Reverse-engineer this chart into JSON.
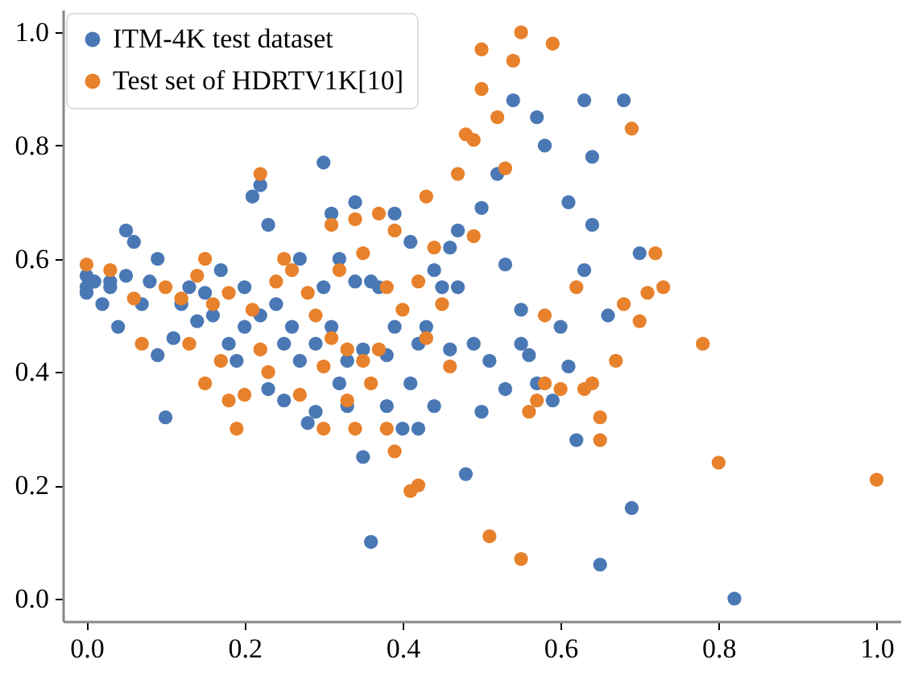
{
  "chart_data": {
    "type": "scatter",
    "xlim": [
      -0.03,
      1.03
    ],
    "ylim": [
      -0.04,
      1.04
    ],
    "xticks": [
      {
        "value": 0,
        "label": "0.0"
      },
      0.2,
      0.4,
      0.6,
      0.8,
      {
        "value": 1,
        "label": "1.0"
      }
    ],
    "yticks": [
      {
        "value": 0,
        "label": "0.0"
      },
      0.2,
      0.4,
      0.6,
      0.8,
      {
        "value": 1,
        "label": "1.0"
      }
    ],
    "grid": false,
    "legend": "top left",
    "marker": "circle",
    "series": [
      {
        "name": "ITM-4K test dataset",
        "color": "#4a78b5",
        "x": [
          0.0,
          0.0,
          0.0,
          0.01,
          0.02,
          0.03,
          0.03,
          0.04,
          0.05,
          0.05,
          0.06,
          0.07,
          0.08,
          0.09,
          0.09,
          0.1,
          0.11,
          0.12,
          0.13,
          0.14,
          0.15,
          0.16,
          0.17,
          0.18,
          0.19,
          0.2,
          0.2,
          0.21,
          0.22,
          0.22,
          0.23,
          0.23,
          0.24,
          0.25,
          0.25,
          0.26,
          0.27,
          0.27,
          0.28,
          0.29,
          0.29,
          0.3,
          0.3,
          0.31,
          0.31,
          0.32,
          0.32,
          0.33,
          0.33,
          0.34,
          0.34,
          0.35,
          0.35,
          0.36,
          0.36,
          0.37,
          0.38,
          0.38,
          0.39,
          0.39,
          0.4,
          0.41,
          0.41,
          0.42,
          0.42,
          0.43,
          0.44,
          0.44,
          0.45,
          0.46,
          0.46,
          0.47,
          0.47,
          0.48,
          0.49,
          0.5,
          0.5,
          0.51,
          0.52,
          0.53,
          0.53,
          0.54,
          0.55,
          0.55,
          0.56,
          0.57,
          0.57,
          0.58,
          0.59,
          0.6,
          0.61,
          0.61,
          0.62,
          0.63,
          0.63,
          0.64,
          0.64,
          0.65,
          0.66,
          0.68,
          0.69,
          0.7,
          0.82
        ],
        "values": [
          0.55,
          0.57,
          0.54,
          0.56,
          0.52,
          0.56,
          0.55,
          0.48,
          0.57,
          0.65,
          0.63,
          0.52,
          0.56,
          0.6,
          0.43,
          0.32,
          0.46,
          0.52,
          0.55,
          0.49,
          0.54,
          0.5,
          0.58,
          0.45,
          0.42,
          0.55,
          0.48,
          0.71,
          0.73,
          0.5,
          0.37,
          0.66,
          0.52,
          0.45,
          0.35,
          0.48,
          0.6,
          0.42,
          0.31,
          0.33,
          0.45,
          0.77,
          0.55,
          0.68,
          0.48,
          0.6,
          0.38,
          0.42,
          0.34,
          0.56,
          0.7,
          0.25,
          0.44,
          0.1,
          0.56,
          0.55,
          0.34,
          0.43,
          0.68,
          0.48,
          0.3,
          0.63,
          0.38,
          0.45,
          0.3,
          0.48,
          0.34,
          0.58,
          0.55,
          0.62,
          0.44,
          0.65,
          0.55,
          0.22,
          0.45,
          0.33,
          0.69,
          0.42,
          0.75,
          0.59,
          0.37,
          0.88,
          0.51,
          0.45,
          0.43,
          0.85,
          0.38,
          0.8,
          0.35,
          0.48,
          0.7,
          0.41,
          0.28,
          0.88,
          0.58,
          0.78,
          0.66,
          0.06,
          0.5,
          0.88,
          0.16,
          0.61,
          0.0
        ]
      },
      {
        "name": "Test set of HDRTV1K[10]",
        "color": "#e8812b",
        "x": [
          0.0,
          0.03,
          0.06,
          0.07,
          0.1,
          0.12,
          0.13,
          0.14,
          0.15,
          0.15,
          0.16,
          0.17,
          0.18,
          0.18,
          0.19,
          0.2,
          0.21,
          0.22,
          0.22,
          0.23,
          0.24,
          0.25,
          0.26,
          0.27,
          0.28,
          0.29,
          0.3,
          0.3,
          0.31,
          0.31,
          0.32,
          0.33,
          0.33,
          0.34,
          0.34,
          0.35,
          0.35,
          0.36,
          0.37,
          0.37,
          0.38,
          0.38,
          0.39,
          0.39,
          0.4,
          0.41,
          0.42,
          0.42,
          0.43,
          0.43,
          0.44,
          0.45,
          0.46,
          0.47,
          0.48,
          0.49,
          0.49,
          0.5,
          0.5,
          0.51,
          0.52,
          0.53,
          0.54,
          0.55,
          0.55,
          0.56,
          0.57,
          0.58,
          0.58,
          0.59,
          0.6,
          0.62,
          0.63,
          0.64,
          0.65,
          0.65,
          0.67,
          0.68,
          0.69,
          0.7,
          0.71,
          0.72,
          0.73,
          0.78,
          0.8,
          1.0
        ],
        "values": [
          0.59,
          0.58,
          0.53,
          0.45,
          0.55,
          0.53,
          0.45,
          0.57,
          0.6,
          0.38,
          0.52,
          0.42,
          0.35,
          0.54,
          0.3,
          0.36,
          0.51,
          0.75,
          0.44,
          0.4,
          0.56,
          0.6,
          0.58,
          0.36,
          0.54,
          0.5,
          0.41,
          0.3,
          0.66,
          0.46,
          0.58,
          0.35,
          0.44,
          0.67,
          0.3,
          0.42,
          0.61,
          0.38,
          0.68,
          0.44,
          0.3,
          0.55,
          0.26,
          0.65,
          0.51,
          0.19,
          0.2,
          0.56,
          0.71,
          0.46,
          0.62,
          0.52,
          0.41,
          0.75,
          0.82,
          0.81,
          0.64,
          0.9,
          0.97,
          0.11,
          0.85,
          0.76,
          0.95,
          1.0,
          0.07,
          0.33,
          0.35,
          0.38,
          0.5,
          0.98,
          0.37,
          0.55,
          0.37,
          0.38,
          0.32,
          0.28,
          0.42,
          0.52,
          0.83,
          0.49,
          0.54,
          0.61,
          0.55,
          0.45,
          0.24,
          0.21
        ]
      }
    ]
  }
}
